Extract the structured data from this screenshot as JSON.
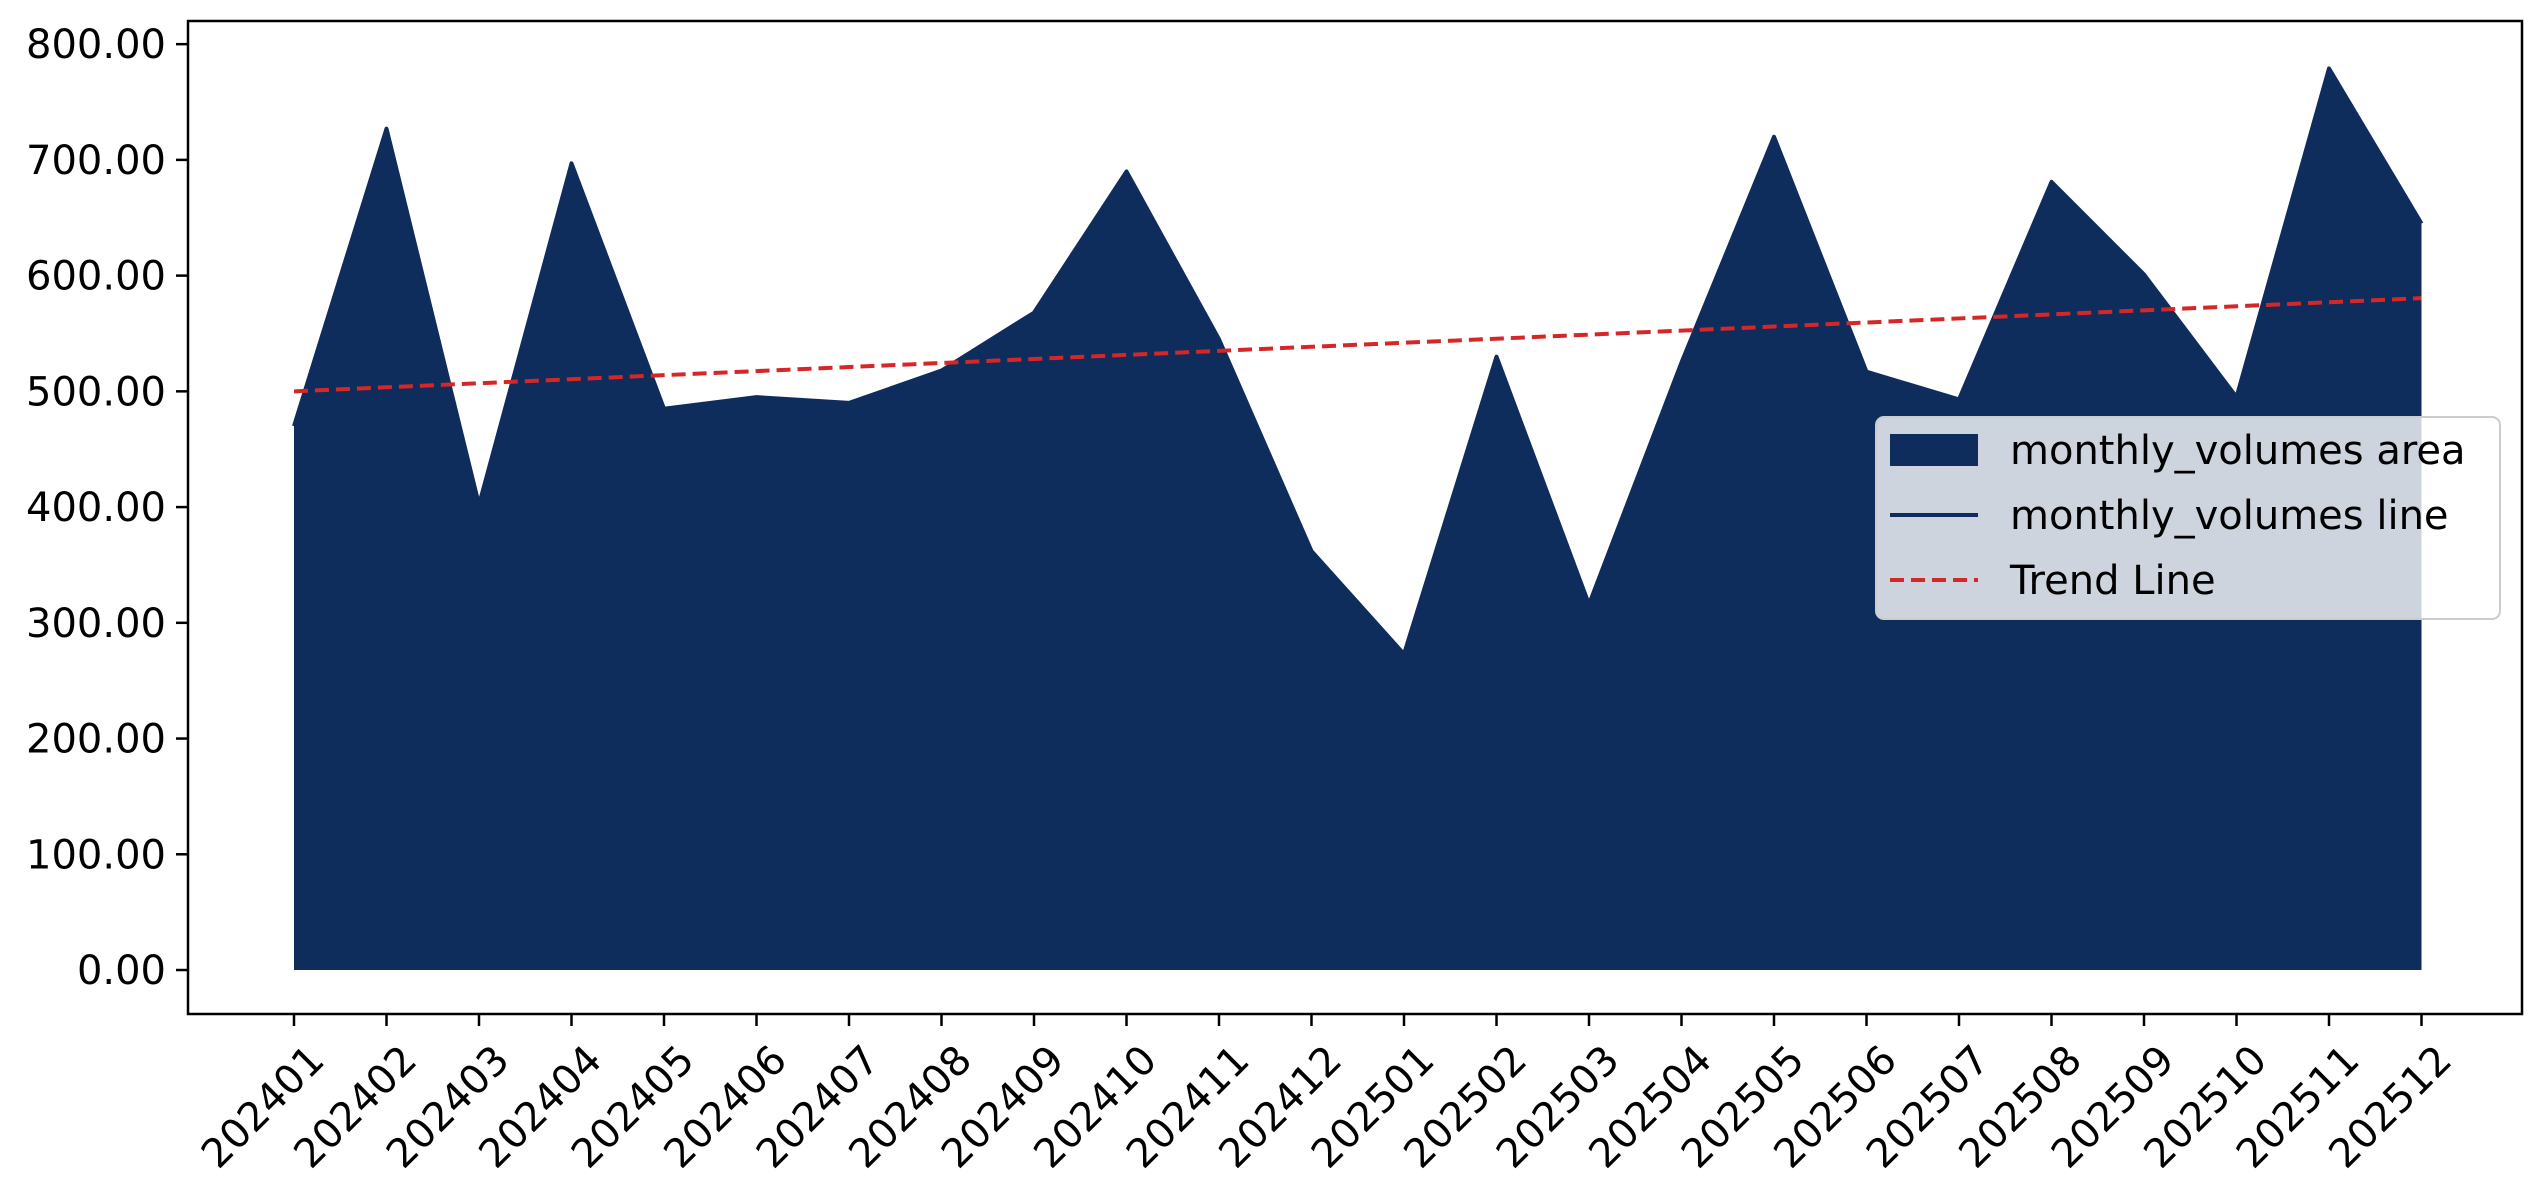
{
  "chart_data": {
    "type": "area",
    "categories": [
      "202401",
      "202402",
      "202403",
      "202404",
      "202405",
      "202406",
      "202407",
      "202408",
      "202409",
      "202410",
      "202411",
      "202412",
      "202501",
      "202502",
      "202503",
      "202504",
      "202505",
      "202506",
      "202507",
      "202508",
      "202509",
      "202510",
      "202511",
      "202512"
    ],
    "series": [
      {
        "name": "monthly_volumes area",
        "kind": "area",
        "values": [
          470,
          727,
          402,
          697,
          485,
          495,
          490,
          518,
          568,
          690,
          545,
          362,
          273,
          530,
          316,
          525,
          720,
          517,
          493,
          681,
          601,
          495,
          779,
          645
        ]
      },
      {
        "name": "monthly_volumes line",
        "kind": "line",
        "values": [
          470,
          727,
          402,
          697,
          485,
          495,
          490,
          518,
          568,
          690,
          545,
          362,
          273,
          530,
          316,
          525,
          720,
          517,
          493,
          681,
          601,
          495,
          779,
          645
        ]
      },
      {
        "name": "Trend Line",
        "kind": "trend",
        "style": "dashed",
        "values": [
          500,
          503.5,
          507,
          510.5,
          514,
          517.5,
          521,
          524.5,
          528,
          531.5,
          535,
          538.5,
          542,
          545.5,
          549,
          552.5,
          556,
          559.5,
          563,
          566.5,
          570,
          573.5,
          577,
          580.5
        ]
      }
    ],
    "ylim": [
      -38,
      820
    ],
    "yticks": [
      0,
      100,
      200,
      300,
      400,
      500,
      600,
      700,
      800
    ],
    "ytick_labels": [
      "0.00",
      "100.00",
      "200.00",
      "300.00",
      "400.00",
      "500.00",
      "600.00",
      "700.00",
      "800.00"
    ],
    "xtick_rotation": 45,
    "grid": false,
    "legend_position": "center-right",
    "colors": {
      "area": "#0e2c5c",
      "line": "#0e2c5c",
      "trend": "#d62728",
      "axes": "#000000",
      "legend_bg": "#ffffff"
    }
  }
}
